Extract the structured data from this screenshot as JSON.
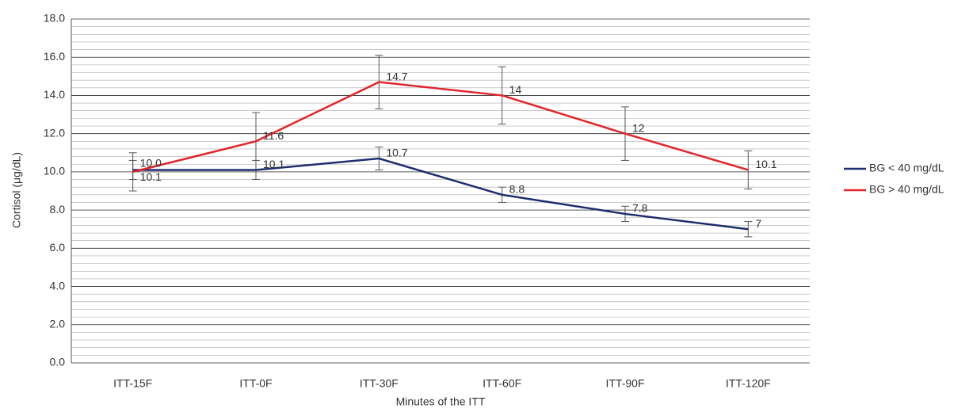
{
  "chart_data": {
    "type": "line",
    "y_label": "Cortisol (μg/dL)",
    "x_label": "Minutes of the ITT",
    "categories": [
      "ITT-15F",
      "ITT-0F",
      "ITT-30F",
      "ITT-60F",
      "ITT-90F",
      "ITT-120F"
    ],
    "series": [
      {
        "name": "BG < 40 mg/dL",
        "color": "#1f2d6e",
        "values": [
          10.1,
          10.1,
          10.7,
          8.8,
          7.8,
          7
        ],
        "errors": [
          0.5,
          0.5,
          0.6,
          0.4,
          0.4,
          0.4
        ]
      },
      {
        "name": "BG > 40 mg/dL",
        "color": "#e0262b",
        "values": [
          10.0,
          11.6,
          14.7,
          14,
          12,
          10.1
        ],
        "value_labels": [
          "10.0",
          "11.6",
          "14.7",
          "14",
          "12",
          "10.1"
        ],
        "errors": [
          1.0,
          1.5,
          1.4,
          1.5,
          1.4,
          1.0
        ]
      }
    ],
    "ylim": [
      0,
      18
    ],
    "yticks": [
      {
        "value": 0,
        "label": "0.0"
      },
      {
        "value": 2,
        "label": "2.0"
      },
      {
        "value": 4,
        "label": "4.0"
      },
      {
        "value": 6,
        "label": "6.0"
      },
      {
        "value": 8,
        "label": "8.0"
      },
      {
        "value": 10,
        "label": "10.0"
      },
      {
        "value": 12,
        "label": "12.0"
      },
      {
        "value": 14,
        "label": "14.0"
      },
      {
        "value": 16,
        "label": "16.0"
      },
      {
        "value": 18,
        "label": "18.0"
      }
    ],
    "grid": true,
    "minor_grid_step": 0.4,
    "legend": "right"
  }
}
